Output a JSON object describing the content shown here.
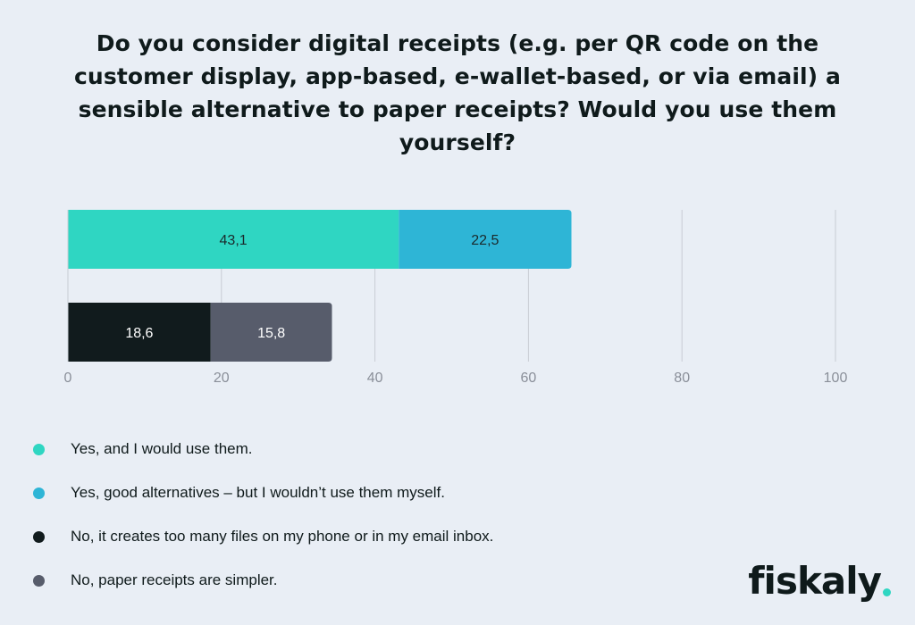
{
  "title": "Do you consider digital receipts (e.g. per QR code on the customer display, app-based, e-wallet-based, or via email) a sensible alternative to paper receipts? Would you use them yourself?",
  "brand": {
    "name": "fiskaly",
    "accent_color": "#2fd6c2"
  },
  "chart_data": {
    "type": "bar",
    "orientation": "horizontal",
    "stacked": true,
    "categories": [
      "",
      ""
    ],
    "xlim": [
      0,
      100
    ],
    "x_ticks": [
      0,
      20,
      40,
      60,
      80,
      100
    ],
    "x_tick_labels": [
      "0",
      "20",
      "40",
      "60",
      "80",
      "100"
    ],
    "grid": true,
    "legend_position": "bottom-left",
    "series": [
      {
        "name": "Yes, and I would use them.",
        "values": [
          43.1,
          0
        ],
        "labels": [
          "43,1",
          ""
        ],
        "color": "#2fd6c2"
      },
      {
        "name": "Yes, good alternatives – but I wouldn’t use them myself.",
        "values": [
          22.5,
          0
        ],
        "labels": [
          "22,5",
          ""
        ],
        "color": "#2eb5d6"
      },
      {
        "name": "No, it creates too many files on my phone or in my email inbox.",
        "values": [
          0,
          18.6
        ],
        "labels": [
          "",
          "18,6"
        ],
        "color": "#111b1d"
      },
      {
        "name": "No, paper receipts are simpler.",
        "values": [
          0,
          15.8
        ],
        "labels": [
          "",
          "15,8"
        ],
        "color": "#575c6b"
      }
    ]
  }
}
